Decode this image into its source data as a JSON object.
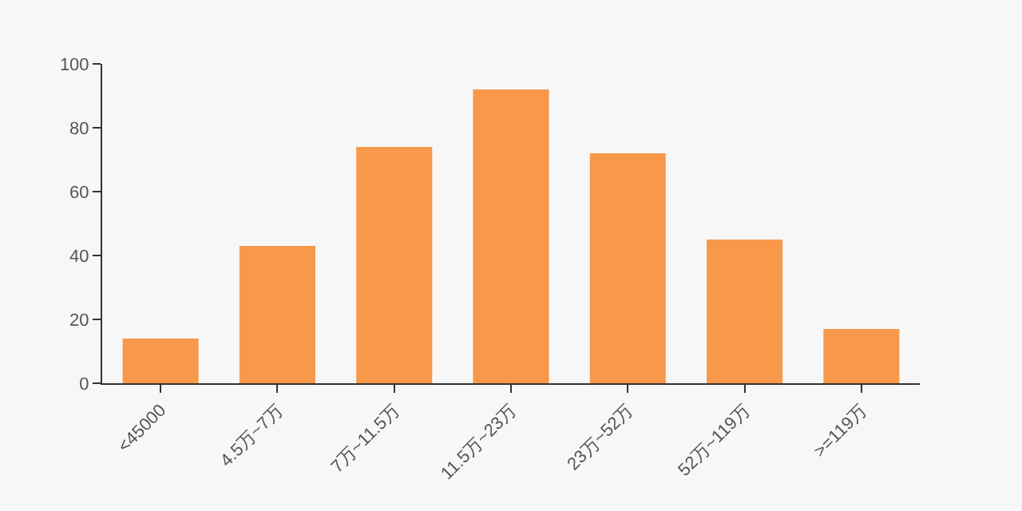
{
  "chart_data": {
    "type": "bar",
    "categories": [
      "<45000",
      "4.5万~7万",
      "7万~11.5万",
      "11.5万~23万",
      "23万~52万",
      "52万~119万",
      ">=119万"
    ],
    "values": [
      14,
      43,
      74,
      92,
      72,
      45,
      17
    ],
    "color": "#f7984a",
    "ylim": [
      0,
      100
    ],
    "yticks": [
      0,
      20,
      40,
      60,
      80,
      100
    ],
    "grid": false,
    "legend": false
  }
}
